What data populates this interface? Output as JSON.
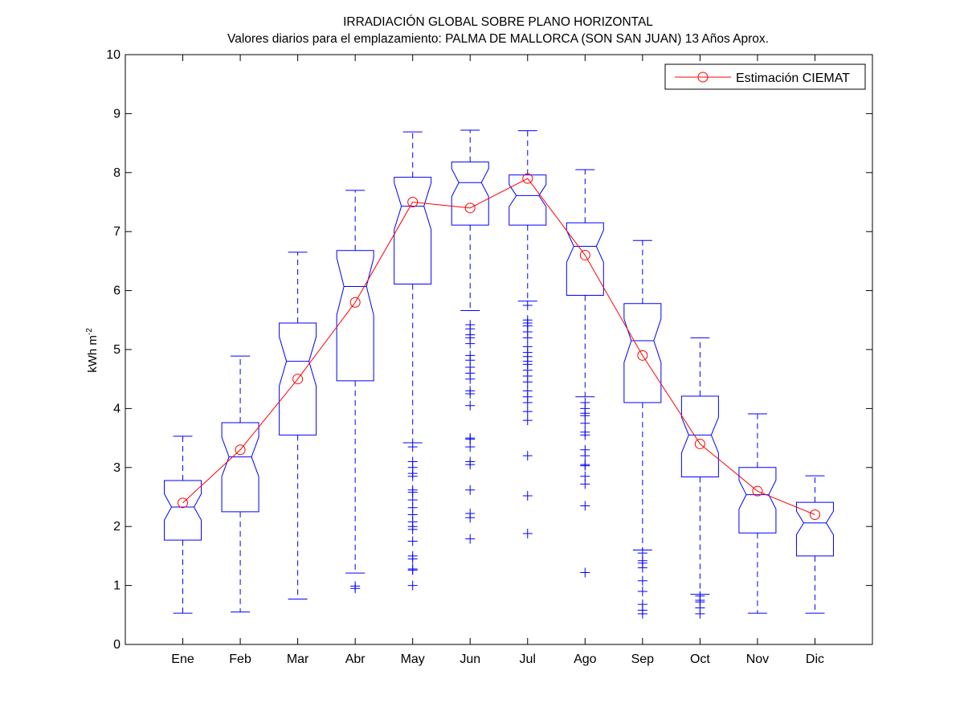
{
  "chart_data": {
    "type": "boxplot",
    "title": "IRRADIACIÓN GLOBAL SOBRE PLANO HORIZONTAL",
    "subtitle": "Valores diarios para el emplazamiento:  PALMA DE MALLORCA (SON SAN JUAN)  13 Años Aprox.",
    "ylabel": "kWh m",
    "ylabel_sup": "-2",
    "xlabel": "",
    "ylim": [
      0,
      10
    ],
    "yticks": [
      "0",
      "1",
      "2",
      "3",
      "4",
      "5",
      "6",
      "7",
      "8",
      "9",
      "10"
    ],
    "categories": [
      "Ene",
      "Feb",
      "Mar",
      "Abr",
      "May",
      "Jun",
      "Jul",
      "Ago",
      "Sep",
      "Oct",
      "Nov",
      "Dic"
    ],
    "grid": false,
    "legend_position": "top-right",
    "box_color": "#0000ff",
    "line_color": "#ff0000",
    "boxes": [
      {
        "q1": 1.77,
        "median": 2.33,
        "q3": 2.78,
        "whisker_low": 0.53,
        "whisker_high": 3.53,
        "outliers": []
      },
      {
        "q1": 2.25,
        "median": 3.18,
        "q3": 3.76,
        "whisker_low": 0.55,
        "whisker_high": 4.89,
        "outliers": []
      },
      {
        "q1": 3.55,
        "median": 4.8,
        "q3": 5.45,
        "whisker_low": 0.77,
        "whisker_high": 6.65,
        "outliers": []
      },
      {
        "q1": 4.47,
        "median": 6.07,
        "q3": 6.68,
        "whisker_low": 1.21,
        "whisker_high": 7.7,
        "outliers": [
          0.99,
          0.95
        ]
      },
      {
        "q1": 6.11,
        "median": 7.43,
        "q3": 7.92,
        "whisker_low": 3.42,
        "whisker_high": 8.69,
        "outliers": [
          3.35,
          3.1,
          3.0,
          2.9,
          2.85,
          2.62,
          2.58,
          2.45,
          2.32,
          2.2,
          2.08,
          2.0,
          1.95,
          1.75,
          1.5,
          1.45,
          1.28,
          1.26,
          1.0
        ]
      },
      {
        "q1": 7.11,
        "median": 7.83,
        "q3": 8.18,
        "whisker_low": 5.66,
        "whisker_high": 8.72,
        "outliers": [
          5.42,
          5.35,
          5.25,
          5.2,
          5.1,
          4.9,
          4.82,
          4.7,
          4.6,
          4.5,
          4.3,
          4.25,
          4.05,
          3.5,
          3.48,
          3.35,
          3.1,
          3.05,
          2.62,
          2.22,
          2.15,
          1.79
        ]
      },
      {
        "q1": 7.11,
        "median": 7.61,
        "q3": 7.96,
        "whisker_low": 5.82,
        "whisker_high": 8.71,
        "outliers": [
          5.75,
          5.5,
          5.45,
          5.4,
          5.3,
          5.2,
          5.05,
          4.95,
          4.88,
          4.8,
          4.75,
          4.65,
          4.55,
          4.45,
          4.3,
          4.2,
          4.1,
          3.95,
          3.8,
          3.2,
          2.52,
          1.88
        ]
      },
      {
        "q1": 5.92,
        "median": 6.75,
        "q3": 7.15,
        "whisker_low": 4.2,
        "whisker_high": 8.05,
        "outliers": [
          4.1,
          4.0,
          3.92,
          3.88,
          3.75,
          3.6,
          3.55,
          3.3,
          3.2,
          3.05,
          3.03,
          2.85,
          2.72,
          2.35,
          1.22
        ]
      },
      {
        "q1": 4.1,
        "median": 5.15,
        "q3": 5.78,
        "whisker_low": 1.6,
        "whisker_high": 6.85,
        "outliers": [
          1.55,
          1.42,
          1.38,
          1.3,
          1.08,
          0.9,
          0.68,
          0.58,
          0.52
        ]
      },
      {
        "q1": 2.84,
        "median": 3.55,
        "q3": 4.21,
        "whisker_low": 0.85,
        "whisker_high": 5.2,
        "outliers": [
          0.82,
          0.75,
          0.72,
          0.62,
          0.52
        ]
      },
      {
        "q1": 1.89,
        "median": 2.54,
        "q3": 3.0,
        "whisker_low": 0.53,
        "whisker_high": 3.91,
        "outliers": []
      },
      {
        "q1": 1.5,
        "median": 2.06,
        "q3": 2.41,
        "whisker_low": 0.53,
        "whisker_high": 2.86,
        "outliers": []
      }
    ],
    "series": [
      {
        "name": "Estimación CIEMAT",
        "values": [
          2.4,
          3.3,
          4.5,
          5.8,
          7.5,
          7.4,
          7.9,
          6.6,
          4.9,
          3.4,
          2.6,
          2.2
        ]
      }
    ]
  }
}
